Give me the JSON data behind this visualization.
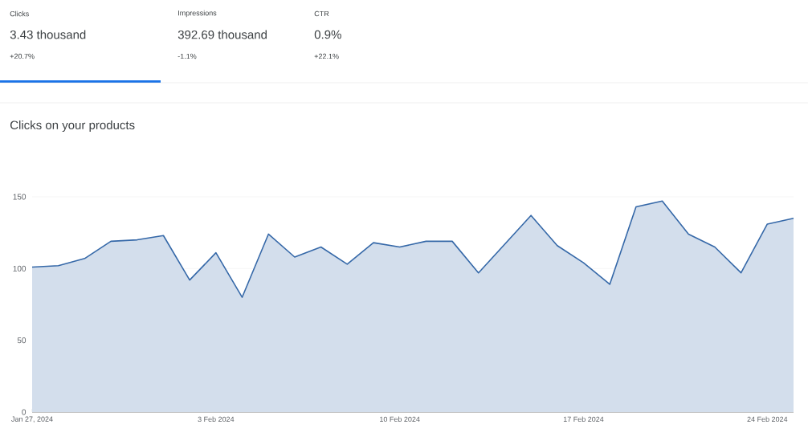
{
  "chart_data": {
    "type": "area",
    "title": "Clicks on your products",
    "annotations": [
      "Clicks",
      "3.43 thousand",
      "+20.7%",
      "Impressions",
      "392.69 thousand",
      "-1.1%",
      "CTR",
      "0.9%",
      "+22.1%"
    ],
    "x": [
      "2024-01-27",
      "2024-01-28",
      "2024-01-29",
      "2024-01-30",
      "2024-01-31",
      "2024-02-01",
      "2024-02-02",
      "2024-02-03",
      "2024-02-04",
      "2024-02-05",
      "2024-02-06",
      "2024-02-07",
      "2024-02-08",
      "2024-02-09",
      "2024-02-10",
      "2024-02-11",
      "2024-02-12",
      "2024-02-13",
      "2024-02-14",
      "2024-02-15",
      "2024-02-16",
      "2024-02-17",
      "2024-02-18",
      "2024-02-19",
      "2024-02-20",
      "2024-02-21",
      "2024-02-22",
      "2024-02-23",
      "2024-02-24",
      "2024-02-25"
    ],
    "series": [
      {
        "color": "#3568a8",
        "values": [
          101,
          102,
          107,
          119,
          120,
          123,
          92,
          111,
          80,
          124,
          108,
          115,
          103,
          118,
          115,
          119,
          119,
          97,
          117,
          137,
          116,
          104,
          89,
          143,
          147,
          124,
          115,
          97,
          131,
          135
        ]
      }
    ],
    "xlim": [
      "2024-01-27",
      "2024-02-25"
    ],
    "xticks": [
      {
        "value": "2024-01-27",
        "label": "Jan 27, 2024"
      },
      {
        "value": "2024-02-03",
        "label": "3 Feb 2024"
      },
      {
        "value": "2024-02-10",
        "label": "10 Feb 2024"
      },
      {
        "value": "2024-02-17",
        "label": "17 Feb 2024"
      },
      {
        "value": "2024-02-24",
        "label": "24 Feb 2024"
      }
    ],
    "ylim": [
      0,
      150
    ],
    "yticks": [
      0,
      50,
      100,
      150
    ],
    "grid": "y"
  }
}
